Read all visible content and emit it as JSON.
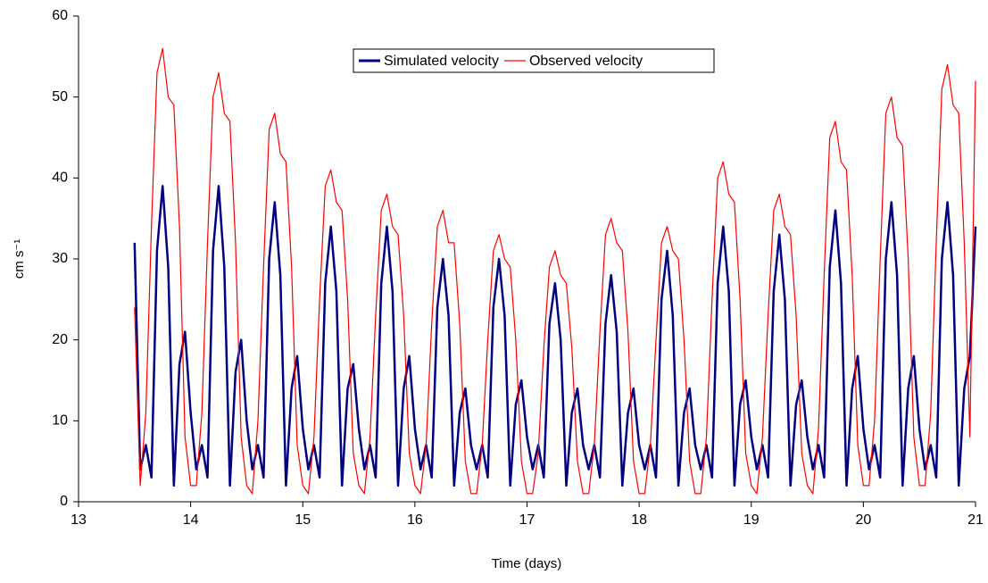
{
  "chart_data": {
    "type": "line",
    "x_label": "Time (days)",
    "y_label": "cm s⁻¹",
    "xlim": [
      13,
      21
    ],
    "xticks": [
      13,
      14,
      15,
      16,
      17,
      18,
      19,
      20,
      21
    ],
    "ylim": [
      0,
      60
    ],
    "yticks": [
      0,
      10,
      20,
      30,
      40,
      50,
      60
    ],
    "legend": "top",
    "x": [
      13.5,
      13.55,
      13.6,
      13.65,
      13.7,
      13.75,
      13.8,
      13.85,
      13.9,
      13.95,
      14,
      14.05,
      14.1,
      14.15,
      14.2,
      14.25,
      14.3,
      14.35,
      14.4,
      14.45,
      14.5,
      14.55,
      14.6,
      14.65,
      14.7,
      14.75,
      14.8,
      14.85,
      14.9,
      14.95,
      15,
      15.05,
      15.1,
      15.15,
      15.2,
      15.25,
      15.3,
      15.35,
      15.4,
      15.45,
      15.5,
      15.55,
      15.6,
      15.65,
      15.7,
      15.75,
      15.8,
      15.85,
      15.9,
      15.95,
      16,
      16.05,
      16.1,
      16.15,
      16.2,
      16.25,
      16.3,
      16.35,
      16.4,
      16.45,
      16.5,
      16.55,
      16.6,
      16.65,
      16.7,
      16.75,
      16.8,
      16.85,
      16.9,
      16.95,
      17,
      17.05,
      17.1,
      17.15,
      17.2,
      17.25,
      17.3,
      17.35,
      17.4,
      17.45,
      17.5,
      17.55,
      17.6,
      17.65,
      17.7,
      17.75,
      17.8,
      17.85,
      17.9,
      17.95,
      18,
      18.05,
      18.1,
      18.15,
      18.2,
      18.25,
      18.3,
      18.35,
      18.4,
      18.45,
      18.5,
      18.55,
      18.6,
      18.65,
      18.7,
      18.75,
      18.8,
      18.85,
      18.9,
      18.95,
      19,
      19.05,
      19.1,
      19.15,
      19.2,
      19.25,
      19.3,
      19.35,
      19.4,
      19.45,
      19.5,
      19.55,
      19.6,
      19.65,
      19.7,
      19.75,
      19.8,
      19.85,
      19.9,
      19.95,
      20,
      20.05,
      20.1,
      20.15,
      20.2,
      20.25,
      20.3,
      20.35,
      20.4,
      20.45,
      20.5,
      20.55,
      20.6,
      20.65,
      20.7,
      20.75,
      20.8,
      20.85,
      20.9,
      20.95,
      21
    ],
    "series": [
      {
        "name": "Simulated velocity",
        "color": "#000080",
        "values": [
          32,
          4,
          7,
          3,
          31,
          39,
          29,
          2,
          17,
          21,
          11,
          4,
          7,
          3,
          31,
          39,
          29,
          2,
          16,
          20,
          10,
          4,
          7,
          3,
          30,
          37,
          28,
          2,
          14,
          18,
          9,
          4,
          7,
          3,
          27,
          34,
          26,
          2,
          14,
          17,
          9,
          4,
          7,
          3,
          27,
          34,
          26,
          2,
          14,
          18,
          9,
          4,
          7,
          3,
          24,
          30,
          23,
          2,
          11,
          14,
          7,
          4,
          7,
          3,
          24,
          30,
          23,
          2,
          12,
          15,
          8,
          4,
          7,
          3,
          22,
          27,
          20,
          2,
          11,
          14,
          7,
          4,
          7,
          3,
          22,
          28,
          21,
          2,
          11,
          14,
          7,
          4,
          7,
          3,
          25,
          31,
          23,
          2,
          11,
          14,
          7,
          4,
          7,
          3,
          27,
          34,
          26,
          2,
          12,
          15,
          8,
          4,
          7,
          3,
          26,
          33,
          25,
          2,
          12,
          15,
          8,
          4,
          7,
          3,
          29,
          36,
          27,
          2,
          14,
          18,
          9,
          4,
          7,
          3,
          30,
          37,
          28,
          2,
          14,
          18,
          9,
          4,
          7,
          3,
          30,
          37,
          28,
          2,
          14,
          18,
          34
        ]
      },
      {
        "name": "Observed velocity",
        "color": "#ff0000",
        "values": [
          24,
          2,
          11,
          34,
          53,
          56,
          50,
          49,
          34,
          8,
          2,
          2,
          11,
          32,
          50,
          53,
          48,
          47,
          32,
          8,
          2,
          1,
          10,
          29,
          46,
          48,
          43,
          42,
          29,
          7,
          2,
          1,
          8,
          25,
          39,
          41,
          37,
          36,
          25,
          6,
          2,
          1,
          8,
          23,
          36,
          38,
          34,
          33,
          23,
          6,
          2,
          1,
          7,
          22,
          34,
          36,
          32,
          32,
          22,
          5,
          1,
          1,
          7,
          20,
          31,
          33,
          30,
          29,
          20,
          5,
          1,
          1,
          6,
          19,
          29,
          31,
          28,
          27,
          19,
          5,
          1,
          1,
          7,
          21,
          33,
          35,
          32,
          31,
          21,
          5,
          1,
          1,
          7,
          20,
          32,
          34,
          31,
          30,
          20,
          5,
          1,
          1,
          8,
          25,
          40,
          42,
          38,
          37,
          25,
          6,
          2,
          1,
          8,
          23,
          36,
          38,
          34,
          33,
          23,
          6,
          2,
          1,
          9,
          28,
          45,
          47,
          42,
          41,
          28,
          7,
          2,
          2,
          10,
          30,
          48,
          50,
          45,
          44,
          30,
          8,
          2,
          2,
          11,
          32,
          51,
          54,
          49,
          48,
          32,
          8,
          52
        ]
      }
    ]
  }
}
